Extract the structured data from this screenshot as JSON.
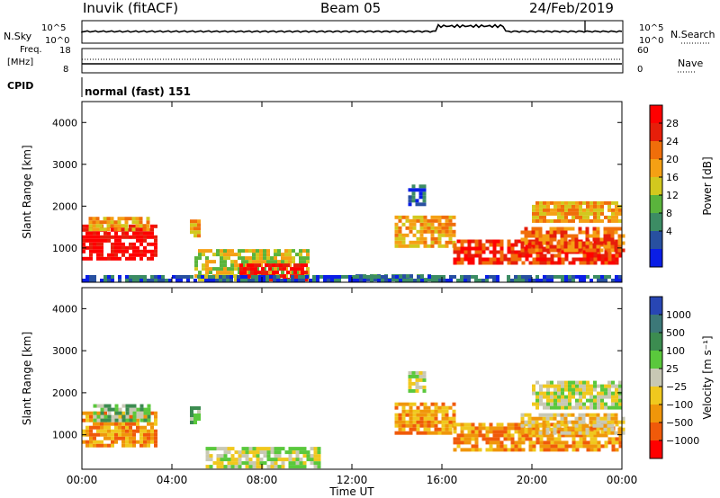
{
  "header": {
    "station": "Inuvik (fitACF)",
    "beam": "Beam 05",
    "date": "24/Feb/2019"
  },
  "top_panels": {
    "nsky_label": "N.Sky",
    "nsky_ticks": [
      "10^5",
      "10^0"
    ],
    "nsearch_label": "N.Search",
    "nsearch_ticks": [
      "10^5",
      "10^0"
    ],
    "freq_label_1": "Freq.",
    "freq_label_2": "[MHz]",
    "freq_ticks": [
      "18",
      "8"
    ],
    "nave_label": "Nave",
    "nave_ticks": [
      "60",
      "0"
    ],
    "cpid_label": "CPID",
    "cpid_value": "normal (fast) 151"
  },
  "chart_data": [
    {
      "type": "heatmap",
      "name": "power",
      "ylabel": "Slant Range [km]",
      "yticks": [
        "1000",
        "2000",
        "3000",
        "4000"
      ],
      "yrange_km": [
        180,
        4500
      ],
      "xrange_hours": [
        0,
        24
      ],
      "colorbar": {
        "label": "Power [dB]",
        "ticks": [
          "28",
          "24",
          "20",
          "16",
          "12",
          "8",
          "4"
        ],
        "colors": [
          "#0a1ee6",
          "#2850a0",
          "#3c8c64",
          "#5ab43c",
          "#d2c81e",
          "#f5a014",
          "#f06e0a",
          "#e61e0a",
          "#ff0000"
        ]
      },
      "echo_regions": [
        {
          "t": [
            0.0,
            3.3
          ],
          "r": [
            700,
            1500
          ],
          "level": 8
        },
        {
          "t": [
            0.3,
            3.0
          ],
          "r": [
            1400,
            1700
          ],
          "level": 5
        },
        {
          "t": [
            4.8,
            5.2
          ],
          "r": [
            1250,
            1600
          ],
          "level": 5
        },
        {
          "t": [
            5.0,
            10.0
          ],
          "r": [
            200,
            900
          ],
          "level": 4
        },
        {
          "t": [
            7.0,
            10.0
          ],
          "r": [
            200,
            600
          ],
          "level": 8
        },
        {
          "t": [
            12.0,
            15.5
          ],
          "r": [
            200,
            350
          ],
          "level": 2
        },
        {
          "t": [
            13.9,
            16.5
          ],
          "r": [
            1000,
            1700
          ],
          "level": 5
        },
        {
          "t": [
            16.5,
            24.0
          ],
          "r": [
            600,
            1200
          ],
          "level": 7
        },
        {
          "t": [
            19.5,
            24.0
          ],
          "r": [
            900,
            1500
          ],
          "level": 6
        },
        {
          "t": [
            20.0,
            24.0
          ],
          "r": [
            1600,
            2100
          ],
          "level": 5
        },
        {
          "t": [
            14.5,
            15.3
          ],
          "r": [
            2000,
            2500
          ],
          "level": 1
        },
        {
          "t": [
            0.0,
            24.0
          ],
          "r": [
            180,
            350
          ],
          "level": 1
        }
      ]
    },
    {
      "type": "heatmap",
      "name": "velocity",
      "ylabel": "Slant Range [km]",
      "yticks": [
        "1000",
        "2000",
        "3000",
        "4000"
      ],
      "yrange_km": [
        180,
        4500
      ],
      "xrange_hours": [
        0,
        24
      ],
      "xticks": [
        "00:00",
        "04:00",
        "08:00",
        "12:00",
        "16:00",
        "20:00",
        "00:00"
      ],
      "xlabel": "Time UT",
      "colorbar": {
        "label": "Velocity [m s⁻¹]",
        "ticks": [
          "1000",
          "500",
          "100",
          "25",
          "−25",
          "−100",
          "−500",
          "−1000"
        ],
        "colors": [
          "#2846b4",
          "#3c7878",
          "#3c8c50",
          "#5ac83c",
          "#c8c8b4",
          "#f0c81e",
          "#f0960a",
          "#f05a0a",
          "#ff0000"
        ]
      },
      "echo_regions": [
        {
          "t": [
            0.0,
            3.3
          ],
          "r": [
            700,
            1500
          ],
          "level": 6
        },
        {
          "t": [
            0.5,
            3.0
          ],
          "r": [
            1300,
            1700
          ],
          "level": 3
        },
        {
          "t": [
            4.8,
            5.2
          ],
          "r": [
            1250,
            1600
          ],
          "level": 3
        },
        {
          "t": [
            5.5,
            10.5
          ],
          "r": [
            200,
            700
          ],
          "level": 4
        },
        {
          "t": [
            13.9,
            16.5
          ],
          "r": [
            1000,
            1700
          ],
          "level": 6
        },
        {
          "t": [
            16.5,
            24.0
          ],
          "r": [
            600,
            1200
          ],
          "level": 6
        },
        {
          "t": [
            19.5,
            24.0
          ],
          "r": [
            1000,
            1500
          ],
          "level": 5
        },
        {
          "t": [
            20.0,
            24.0
          ],
          "r": [
            1600,
            2200
          ],
          "level": 4
        },
        {
          "t": [
            14.5,
            15.3
          ],
          "r": [
            2000,
            2500
          ],
          "level": 4
        }
      ]
    }
  ]
}
